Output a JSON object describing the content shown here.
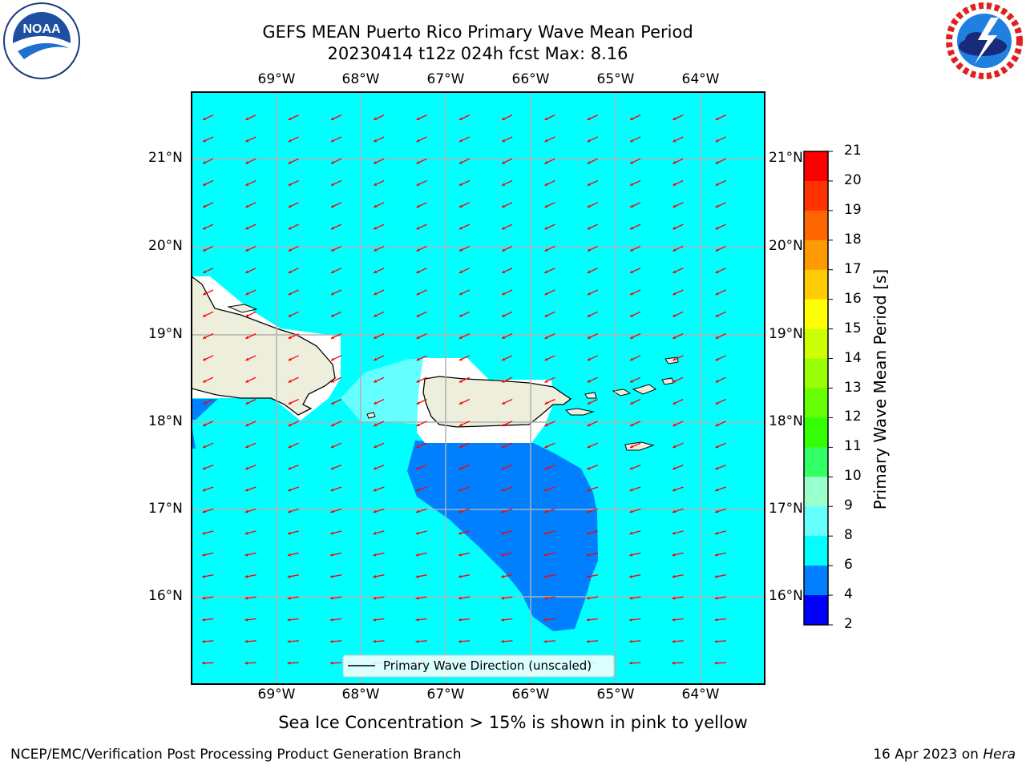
{
  "title_line1": "GEFS MEAN Puerto Rico Primary Wave Mean Period",
  "title_line2": "20230414 t12z 024h fcst   Max: 8.16",
  "lon_labels": [
    "69°W",
    "68°W",
    "67°W",
    "66°W",
    "65°W",
    "64°W"
  ],
  "lat_labels": [
    "21°N",
    "20°N",
    "19°N",
    "18°N",
    "17°N",
    "16°N"
  ],
  "legend_label": "Primary Wave Direction (unscaled)",
  "colorbar": {
    "label": "Primary Wave Mean Period [s]",
    "ticks": [
      "21",
      "20",
      "19",
      "18",
      "17",
      "16",
      "15",
      "14",
      "13",
      "12",
      "11",
      "10",
      "9",
      "8",
      "6",
      "4",
      "2"
    ],
    "colors": [
      "#ff0000",
      "#ff3300",
      "#ff6600",
      "#ff9900",
      "#ffcc00",
      "#ffff00",
      "#ccff00",
      "#99ff00",
      "#66ff00",
      "#33ff00",
      "#33ff66",
      "#99ffcc",
      "#66ffff",
      "#00ffff",
      "#0080ff",
      "#0000ff"
    ]
  },
  "sea_ice_note": "Sea Ice Concentration > 15% is shown in pink to yellow",
  "footer_left": "NCEP/EMC/Verification Post Processing Product Generation Branch",
  "footer_right_date": "16 Apr 2023 on ",
  "footer_right_machine": "Hera",
  "logos": {
    "left": "noaa-logo",
    "right": "nws-logo"
  },
  "colors": {
    "ocean": "#00ffff",
    "land": "#eeeedd",
    "deep_blue": "#0080ff",
    "light_cyan": "#66ffff",
    "arrow": "#ff0000",
    "grid": "#b0b0b0"
  }
}
